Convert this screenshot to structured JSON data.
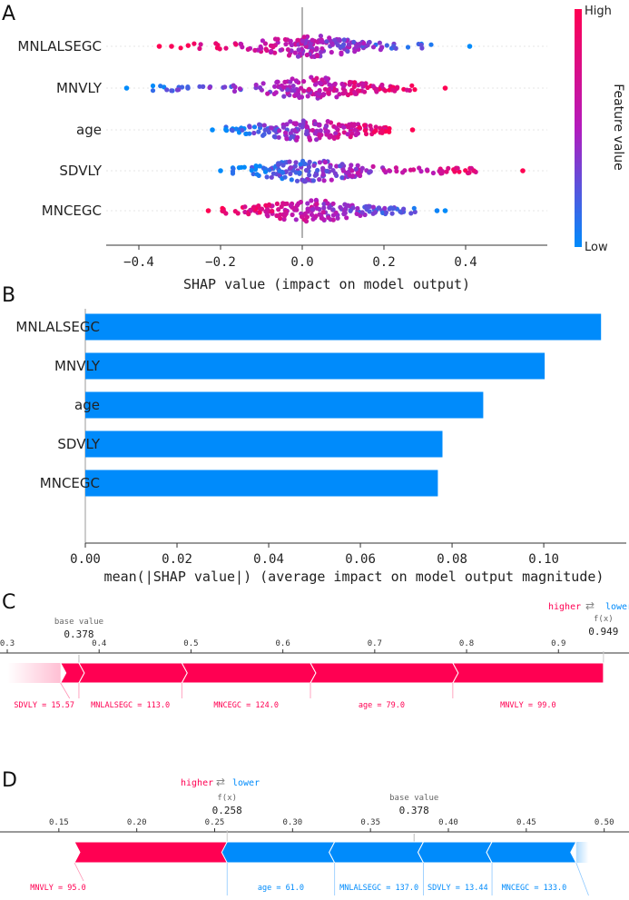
{
  "colors": {
    "high": "#ff0052",
    "low": "#008bfb",
    "axis": "#333333",
    "zero": "#999999"
  },
  "chart_data": [
    {
      "panel": "A",
      "type": "scatter",
      "subtype": "shap-beeswarm",
      "features": [
        "MNLALSEGC",
        "MNVLY",
        "age",
        "SDVLY",
        "MNCEGC"
      ],
      "xlabel": "SHAP value (impact on model output)",
      "xlim": [
        -0.48,
        0.6
      ],
      "xticks": [
        -0.4,
        -0.2,
        0.0,
        0.2,
        0.4
      ],
      "xtick_labels": [
        "−0.4",
        "−0.2",
        "0.0",
        "0.2",
        "0.4"
      ],
      "colorbar": {
        "label": "Feature value",
        "high": "High",
        "low": "Low"
      },
      "ranges": [
        [
          -0.35,
          0.41
        ],
        [
          -0.43,
          0.35
        ],
        [
          -0.22,
          0.27
        ],
        [
          -0.2,
          0.54
        ],
        [
          -0.23,
          0.35
        ]
      ],
      "outliers": [
        [
          -0.35,
          -0.32,
          0.41
        ],
        [
          -0.43,
          -0.28,
          0.35
        ],
        [
          -0.22,
          0.27
        ],
        [
          -0.2,
          0.42,
          0.54
        ],
        [
          -0.23,
          0.33,
          0.35
        ]
      ]
    },
    {
      "panel": "B",
      "type": "bar",
      "orientation": "horizontal",
      "categories": [
        "MNLALSEGC",
        "MNVLY",
        "age",
        "SDVLY",
        "MNCEGC"
      ],
      "values": [
        0.1125,
        0.1002,
        0.0868,
        0.0779,
        0.0769
      ],
      "xlabel": "mean(|SHAP value|) (average impact on model output magnitude)",
      "xlim": [
        0.0,
        0.118
      ],
      "xticks": [
        0.0,
        0.02,
        0.04,
        0.06,
        0.08,
        0.1
      ],
      "xtick_labels": [
        "0.00",
        "0.02",
        "0.04",
        "0.06",
        "0.08",
        "0.10"
      ]
    },
    {
      "panel": "C",
      "type": "bar",
      "subtype": "shap-force",
      "base_value": 0.378,
      "base_label": "base value",
      "base_value_text": "0.378",
      "fx_label": "f(x)",
      "fx_value": 0.949,
      "fx_value_text": "0.949",
      "legend_higher": "higher",
      "legend_lower": "lower",
      "legend_arrows": "⇄",
      "xlim": [
        0.3,
        0.96
      ],
      "xticks": [
        0.3,
        0.4,
        0.5,
        0.6,
        0.7,
        0.8,
        0.9
      ],
      "xtick_labels": [
        "0.3",
        "0.4",
        "0.5",
        "0.6",
        "0.7",
        "0.8",
        "0.9"
      ],
      "positive": [
        {
          "label": "SDVLY = 15.57",
          "from": 0.358,
          "to": 0.378
        },
        {
          "label": "MNLALSEGC = 113.0",
          "from": 0.378,
          "to": 0.49
        },
        {
          "label": "MNCEGC = 124.0",
          "from": 0.49,
          "to": 0.63
        },
        {
          "label": "age = 79.0",
          "from": 0.63,
          "to": 0.785
        },
        {
          "label": "MNVLY = 99.0",
          "from": 0.785,
          "to": 0.949
        }
      ],
      "negative": [],
      "left_tail_to": 0.3
    },
    {
      "panel": "D",
      "type": "bar",
      "subtype": "shap-force",
      "base_value": 0.378,
      "base_label": "base value",
      "base_value_text": "0.378",
      "fx_label": "f(x)",
      "fx_value": 0.258,
      "fx_value_text": "0.258",
      "legend_higher": "higher",
      "legend_lower": "lower",
      "legend_arrows": "⇄",
      "xlim": [
        0.1,
        0.52
      ],
      "xticks": [
        0.15,
        0.2,
        0.25,
        0.3,
        0.35,
        0.4,
        0.45,
        0.5
      ],
      "xtick_labels": [
        "0.15",
        "0.20",
        "0.25",
        "0.30",
        "0.35",
        "0.40",
        "0.45",
        "0.50"
      ],
      "positive": [
        {
          "label": "MNVLY = 95.0",
          "from": 0.16,
          "to": 0.258
        }
      ],
      "negative": [
        {
          "label": "age = 61.0",
          "from": 0.258,
          "to": 0.327
        },
        {
          "label": "MNLALSEGC = 137.0",
          "from": 0.327,
          "to": 0.384
        },
        {
          "label": "SDVLY = 13.44",
          "from": 0.384,
          "to": 0.428
        },
        {
          "label": "MNCEGC = 133.0",
          "from": 0.428,
          "to": 0.482
        }
      ],
      "right_tail_to": 0.49
    }
  ]
}
